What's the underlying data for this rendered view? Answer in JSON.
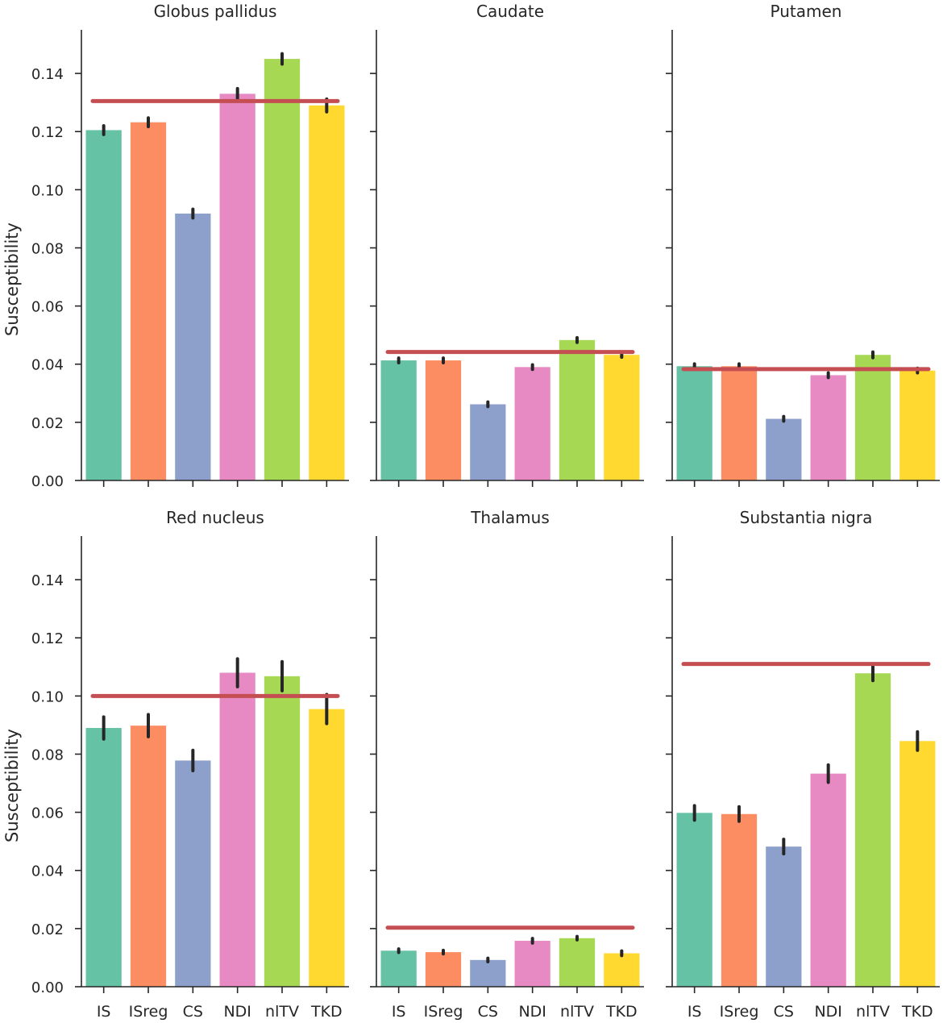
{
  "chart_data": {
    "type": "bar",
    "ylabel": "Susceptibility",
    "ylim": [
      0,
      0.155
    ],
    "yticks": [
      0.0,
      0.02,
      0.04,
      0.06,
      0.08,
      0.1,
      0.12,
      0.14
    ],
    "ytick_labels": [
      "0.00",
      "0.02",
      "0.04",
      "0.06",
      "0.08",
      "0.10",
      "0.12",
      "0.14"
    ],
    "categories": [
      "IS",
      "ISreg",
      "CS",
      "NDI",
      "nlTV",
      "TKD"
    ],
    "colors": [
      "#66c2a5",
      "#fc8d62",
      "#8da0cb",
      "#e78ac3",
      "#a6d854",
      "#ffd92f"
    ],
    "reference_color": "#c44e52",
    "error_bar_color": "#262626",
    "panels": [
      {
        "title": "Globus pallidus",
        "values": [
          0.1205,
          0.1232,
          0.0918,
          0.133,
          0.145,
          0.129
        ],
        "errors": [
          0.0015,
          0.0015,
          0.0015,
          0.0018,
          0.0018,
          0.0022
        ],
        "reference": 0.1305
      },
      {
        "title": "Caudate",
        "values": [
          0.0413,
          0.0413,
          0.0262,
          0.039,
          0.0483,
          0.0432
        ],
        "errors": [
          0.0008,
          0.0008,
          0.0008,
          0.0008,
          0.0008,
          0.0008
        ],
        "reference": 0.0442
      },
      {
        "title": "Putamen",
        "values": [
          0.0393,
          0.0393,
          0.0212,
          0.0362,
          0.0432,
          0.0378
        ],
        "errors": [
          0.0008,
          0.0008,
          0.0008,
          0.0008,
          0.001,
          0.0008
        ],
        "reference": 0.0383
      },
      {
        "title": "Red nucleus",
        "values": [
          0.089,
          0.0898,
          0.0778,
          0.108,
          0.1068,
          0.0955
        ],
        "errors": [
          0.0038,
          0.0038,
          0.0035,
          0.0048,
          0.005,
          0.005
        ],
        "reference": 0.1
      },
      {
        "title": "Thalamus",
        "values": [
          0.0124,
          0.0119,
          0.0092,
          0.0158,
          0.0167,
          0.0115
        ],
        "errors": [
          0.0006,
          0.0006,
          0.0006,
          0.0008,
          0.0006,
          0.0008
        ],
        "reference": 0.0203
      },
      {
        "title": "Substantia nigra",
        "values": [
          0.0598,
          0.0594,
          0.0482,
          0.0733,
          0.1078,
          0.0845
        ],
        "errors": [
          0.0025,
          0.0025,
          0.0025,
          0.003,
          0.0025,
          0.0032
        ],
        "reference": 0.111
      }
    ]
  }
}
